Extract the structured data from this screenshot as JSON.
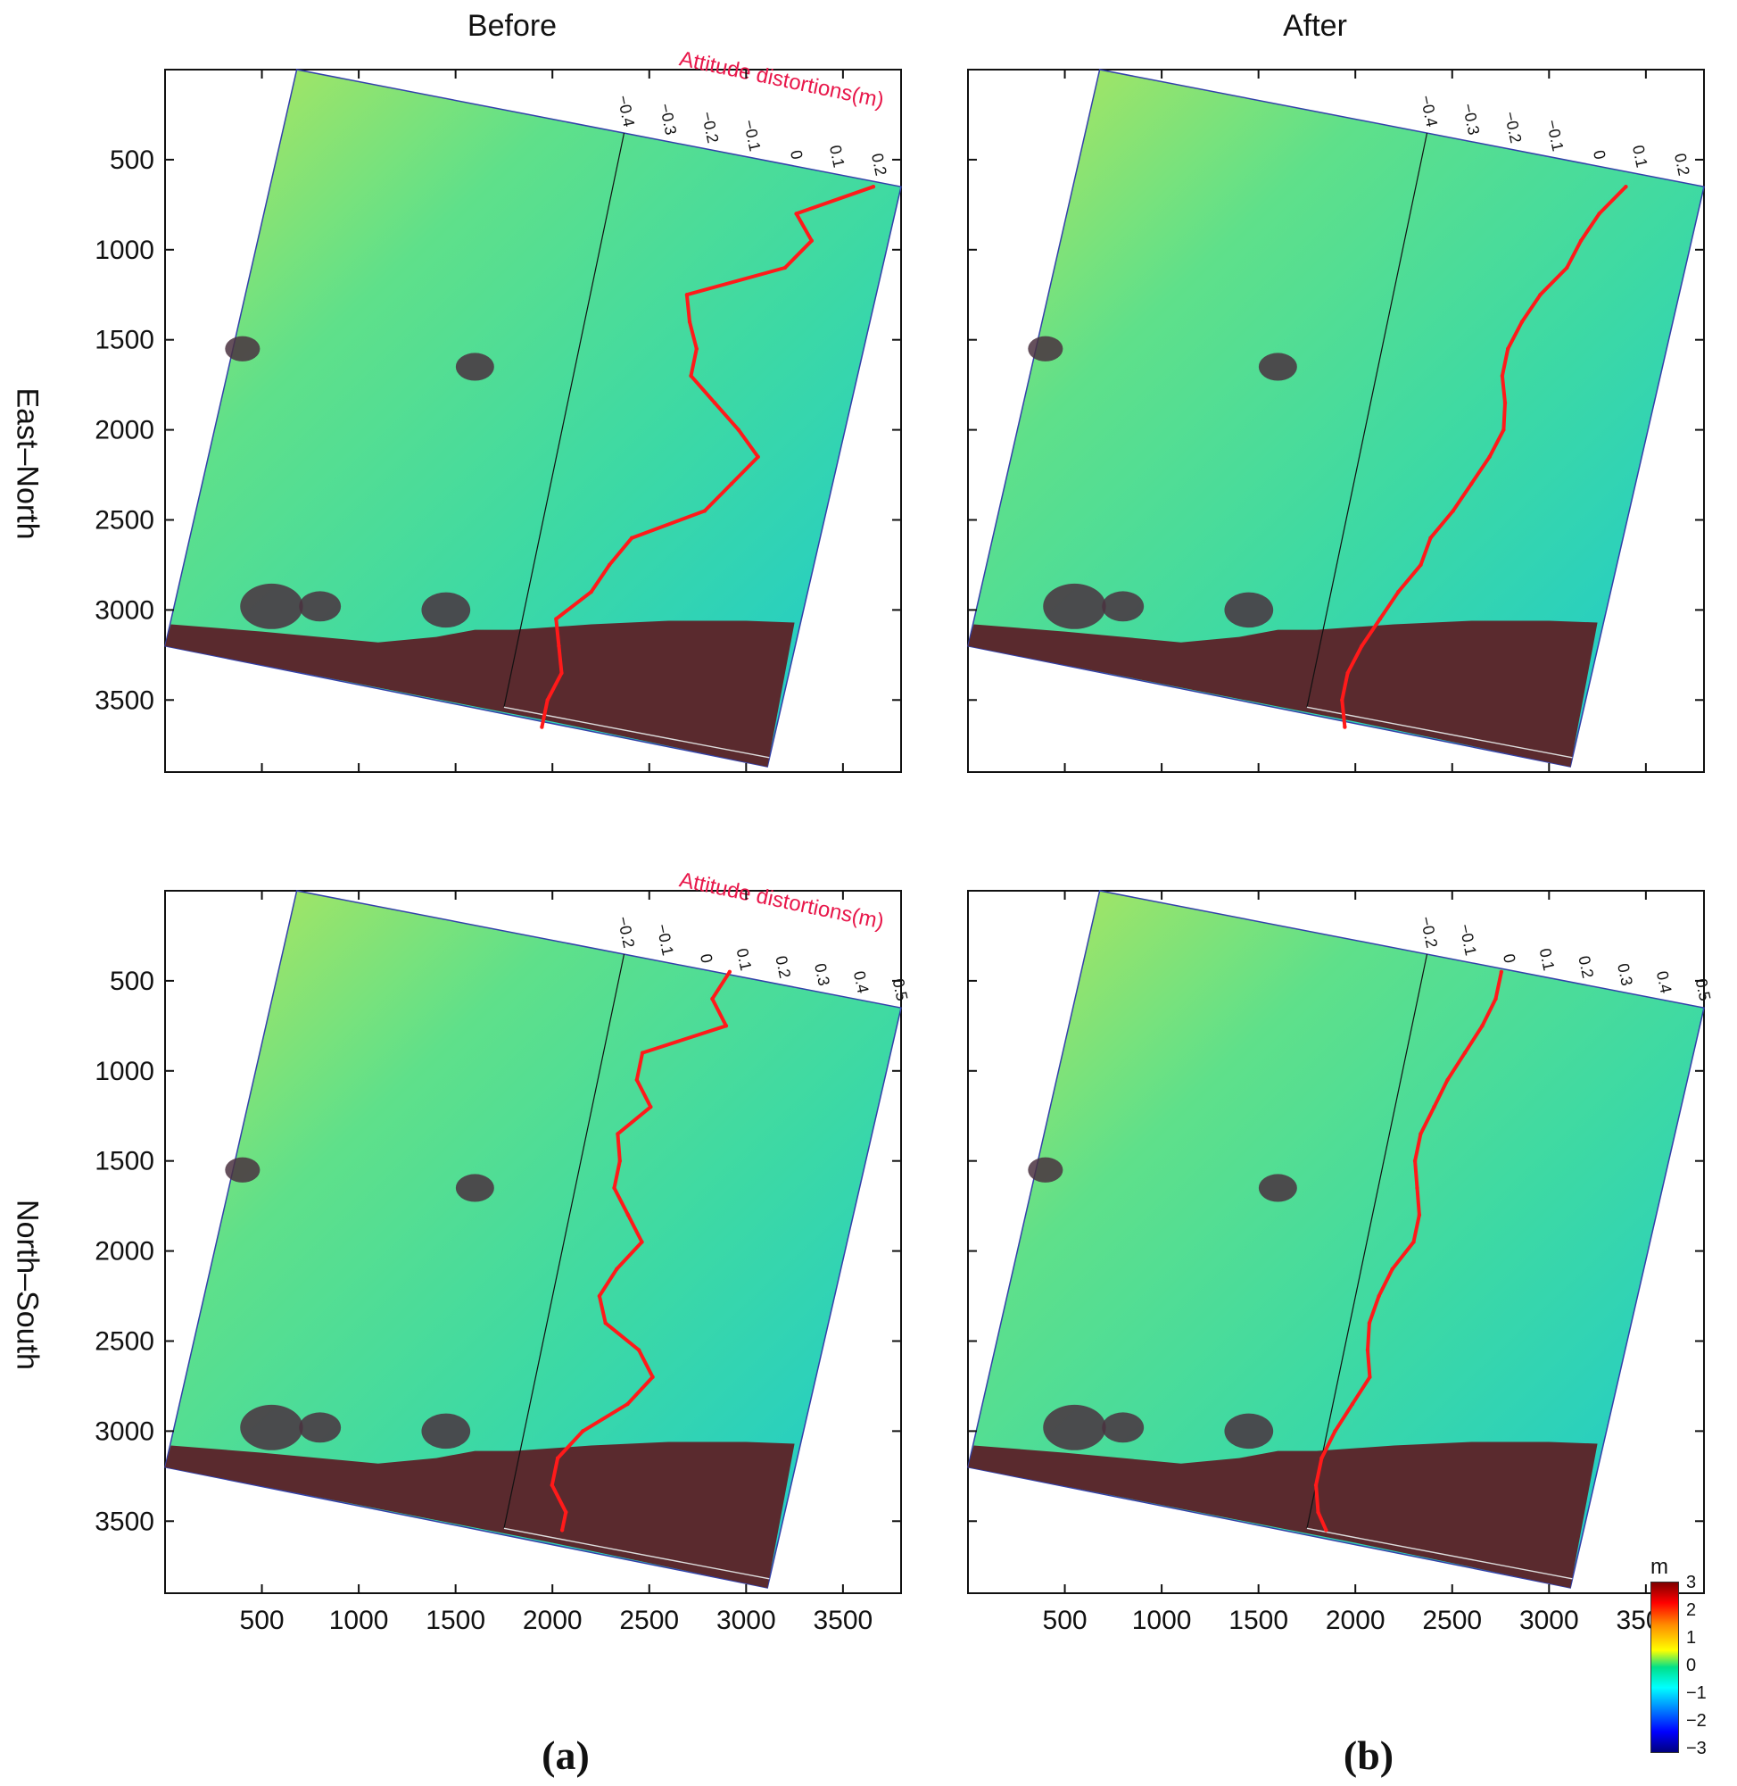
{
  "figure": {
    "columns": [
      "Before",
      "After"
    ],
    "rows": [
      "East–North",
      "North–South"
    ],
    "sublabels": [
      "(a)",
      "(b)"
    ],
    "overlay_title": "Attitude distortions(m)",
    "colorbar": {
      "unit": "m",
      "ticks": [
        "3",
        "2",
        "1",
        "0",
        "−1",
        "−2",
        "−3"
      ]
    }
  },
  "chart_data": [
    {
      "type": "heatmap",
      "title": "",
      "column": "Before",
      "row": "East–North",
      "xticks": [
        500,
        1000,
        1500,
        2000,
        2500,
        3000,
        3500
      ],
      "yticks": [
        500,
        1000,
        1500,
        2000,
        2500,
        3000,
        3500
      ],
      "xlim": [
        0,
        3800
      ],
      "ylim": [
        3900,
        0
      ],
      "overlay_ticks": [
        "−0.4",
        "−0.3",
        "−0.2",
        "−0.1",
        "0",
        "0.1",
        "0.2"
      ],
      "overlay_range": [
        -0.4,
        0.25
      ],
      "distortion_series": {
        "name": "Attitude distortions(m)",
        "y": [
          650,
          800,
          950,
          1100,
          1250,
          1400,
          1550,
          1700,
          1850,
          2000,
          2150,
          2300,
          2450,
          2600,
          2750,
          2900,
          3050,
          3200,
          3350,
          3500,
          3650
        ],
        "value": [
          0.22,
          0.05,
          0.1,
          0.05,
          -0.17,
          -0.15,
          -0.12,
          -0.12,
          -0.05,
          0.02,
          0.08,
          0.03,
          -0.02,
          -0.18,
          -0.22,
          -0.25,
          -0.32,
          -0.3,
          -0.28,
          -0.3,
          -0.3
        ]
      }
    },
    {
      "type": "heatmap",
      "title": "",
      "column": "After",
      "row": "East–North",
      "xticks": [
        500,
        1000,
        1500,
        2000,
        2500,
        3000,
        3500
      ],
      "yticks": [
        500,
        1000,
        1500,
        2000,
        2500,
        3000,
        3500
      ],
      "xlim": [
        0,
        3800
      ],
      "ylim": [
        3900,
        0
      ],
      "overlay_ticks": [
        "−0.4",
        "−0.3",
        "−0.2",
        "−0.1",
        "0",
        "0.1",
        "0.2"
      ],
      "overlay_range": [
        -0.4,
        0.25
      ],
      "distortion_series": {
        "name": "Attitude distortions(m)",
        "y": [
          650,
          800,
          950,
          1100,
          1250,
          1400,
          1550,
          1700,
          1850,
          2000,
          2150,
          2300,
          2450,
          2600,
          2750,
          2900,
          3050,
          3200,
          3350,
          3500,
          3650
        ],
        "value": [
          0.1,
          0.05,
          0.02,
          0.0,
          -0.05,
          -0.08,
          -0.1,
          -0.1,
          -0.08,
          -0.07,
          -0.09,
          -0.12,
          -0.15,
          -0.19,
          -0.2,
          -0.24,
          -0.27,
          -0.3,
          -0.32,
          -0.32,
          -0.3
        ]
      }
    },
    {
      "type": "heatmap",
      "title": "",
      "column": "Before",
      "row": "North–South",
      "xticks": [
        500,
        1000,
        1500,
        2000,
        2500,
        3000,
        3500
      ],
      "yticks": [
        500,
        1000,
        1500,
        2000,
        2500,
        3000,
        3500
      ],
      "xlim": [
        0,
        3800
      ],
      "ylim": [
        3900,
        0
      ],
      "overlay_ticks": [
        "−0.2",
        "−0.1",
        "0",
        "0.1",
        "0.2",
        "0.3",
        "0.4",
        "0.5"
      ],
      "overlay_range": [
        -0.2,
        0.5
      ],
      "distortion_series": {
        "name": "Attitude distortions(m)",
        "y": [
          450,
          600,
          750,
          900,
          1050,
          1200,
          1350,
          1500,
          1650,
          1800,
          1950,
          2100,
          2250,
          2400,
          2550,
          2700,
          2850,
          3000,
          3150,
          3300,
          3450,
          3550
        ],
        "value": [
          0.08,
          0.05,
          0.1,
          -0.1,
          -0.1,
          -0.05,
          -0.12,
          -0.1,
          -0.1,
          -0.05,
          0.0,
          -0.05,
          -0.08,
          -0.05,
          0.05,
          0.1,
          0.05,
          -0.05,
          -0.1,
          -0.1,
          -0.05,
          -0.05
        ]
      }
    },
    {
      "type": "heatmap",
      "title": "",
      "column": "After",
      "row": "North–South",
      "xticks": [
        500,
        1000,
        1500,
        2000,
        2500,
        3000,
        3500
      ],
      "yticks": [
        500,
        1000,
        1500,
        2000,
        2500,
        3000,
        3500
      ],
      "xlim": [
        0,
        3800
      ],
      "ylim": [
        3900,
        0
      ],
      "overlay_ticks": [
        "−0.2",
        "−0.1",
        "0",
        "0.1",
        "0.2",
        "0.3",
        "0.4",
        "0.5"
      ],
      "overlay_range": [
        -0.2,
        0.5
      ],
      "distortion_series": {
        "name": "Attitude distortions(m)",
        "y": [
          450,
          600,
          750,
          900,
          1050,
          1200,
          1350,
          1500,
          1650,
          1800,
          1950,
          2100,
          2250,
          2400,
          2550,
          2700,
          2850,
          3000,
          3150,
          3300,
          3450,
          3550
        ],
        "value": [
          0.0,
          0.0,
          -0.02,
          -0.05,
          -0.08,
          -0.1,
          -0.12,
          -0.12,
          -0.1,
          -0.08,
          -0.08,
          -0.12,
          -0.14,
          -0.15,
          -0.14,
          -0.12,
          -0.15,
          -0.18,
          -0.2,
          -0.2,
          -0.18,
          -0.15
        ]
      }
    }
  ]
}
